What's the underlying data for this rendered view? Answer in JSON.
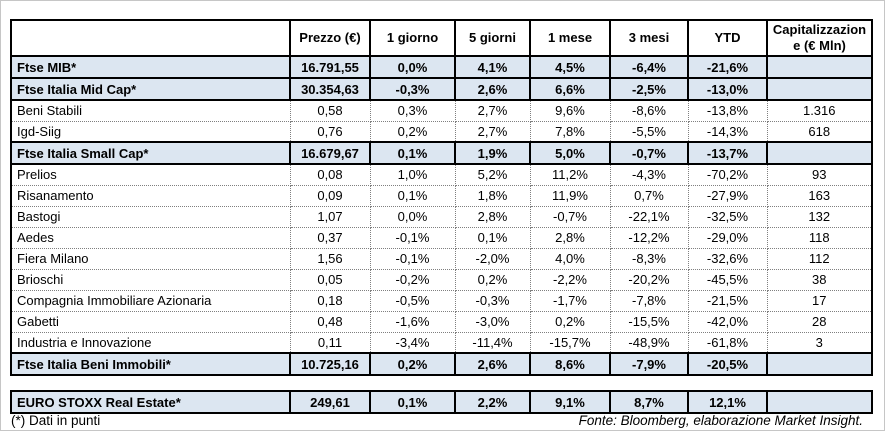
{
  "colors": {
    "highlight": "#dce6f1",
    "border": "#000000",
    "dotted_grid": "#7f7f7f",
    "frame": "#c6c6c6"
  },
  "chart_data": {
    "type": "table",
    "columns": [
      "",
      "Prezzo (€)",
      "1 giorno",
      "5 giorni",
      "1 mese",
      "3 mesi",
      "YTD",
      "Capitalizzazione (€ Mln)"
    ],
    "rows": [
      {
        "name": "Ftse MIB*",
        "style": "index",
        "values": [
          "16.791,55",
          "0,0%",
          "4,1%",
          "4,5%",
          "-6,4%",
          "-21,6%",
          ""
        ]
      },
      {
        "name": "Ftse Italia Mid Cap*",
        "style": "index",
        "values": [
          "30.354,63",
          "-0,3%",
          "2,6%",
          "6,6%",
          "-2,5%",
          "-13,0%",
          ""
        ]
      },
      {
        "name": "Beni Stabili",
        "style": "company",
        "values": [
          "0,58",
          "0,3%",
          "2,7%",
          "9,6%",
          "-8,6%",
          "-13,8%",
          "1.316"
        ]
      },
      {
        "name": "Igd-Siig",
        "style": "company",
        "values": [
          "0,76",
          "0,2%",
          "2,7%",
          "7,8%",
          "-5,5%",
          "-14,3%",
          "618"
        ]
      },
      {
        "name": "Ftse Italia Small Cap*",
        "style": "index",
        "values": [
          "16.679,67",
          "0,1%",
          "1,9%",
          "5,0%",
          "-0,7%",
          "-13,7%",
          ""
        ]
      },
      {
        "name": "Prelios",
        "style": "company",
        "values": [
          "0,08",
          "1,0%",
          "5,2%",
          "11,2%",
          "-4,3%",
          "-70,2%",
          "93"
        ]
      },
      {
        "name": "Risanamento",
        "style": "company",
        "values": [
          "0,09",
          "0,1%",
          "1,8%",
          "11,9%",
          "0,7%",
          "-27,9%",
          "163"
        ]
      },
      {
        "name": "Bastogi",
        "style": "company",
        "values": [
          "1,07",
          "0,0%",
          "2,8%",
          "-0,7%",
          "-22,1%",
          "-32,5%",
          "132"
        ]
      },
      {
        "name": "Aedes",
        "style": "company",
        "values": [
          "0,37",
          "-0,1%",
          "0,1%",
          "2,8%",
          "-12,2%",
          "-29,0%",
          "118"
        ]
      },
      {
        "name": "Fiera Milano",
        "style": "company",
        "values": [
          "1,56",
          "-0,1%",
          "-2,0%",
          "4,0%",
          "-8,3%",
          "-32,6%",
          "112"
        ]
      },
      {
        "name": "Brioschi",
        "style": "company",
        "values": [
          "0,05",
          "-0,2%",
          "0,2%",
          "-2,2%",
          "-20,2%",
          "-45,5%",
          "38"
        ]
      },
      {
        "name": "Compagnia Immobiliare Azionaria",
        "style": "company",
        "values": [
          "0,18",
          "-0,5%",
          "-0,3%",
          "-1,7%",
          "-7,8%",
          "-21,5%",
          "17"
        ]
      },
      {
        "name": "Gabetti",
        "style": "company",
        "values": [
          "0,48",
          "-1,6%",
          "-3,0%",
          "0,2%",
          "-15,5%",
          "-42,0%",
          "28"
        ]
      },
      {
        "name": "Industria e Innovazione",
        "style": "company",
        "values": [
          "0,11",
          "-3,4%",
          "-11,4%",
          "-15,7%",
          "-48,9%",
          "-61,8%",
          "3"
        ]
      },
      {
        "name": "Ftse Italia Beni Immobili*",
        "style": "index",
        "values": [
          "10.725,16",
          "0,2%",
          "2,6%",
          "8,6%",
          "-7,9%",
          "-20,5%",
          ""
        ]
      }
    ],
    "euro_row": {
      "name": "EURO STOXX Real Estate*",
      "style": "index",
      "values": [
        "249,61",
        "0,1%",
        "2,2%",
        "9,1%",
        "8,7%",
        "12,1%",
        ""
      ]
    },
    "footnote": "(*) Dati in punti",
    "source": "Fonte: Bloomberg, elaborazione Market Insight."
  }
}
